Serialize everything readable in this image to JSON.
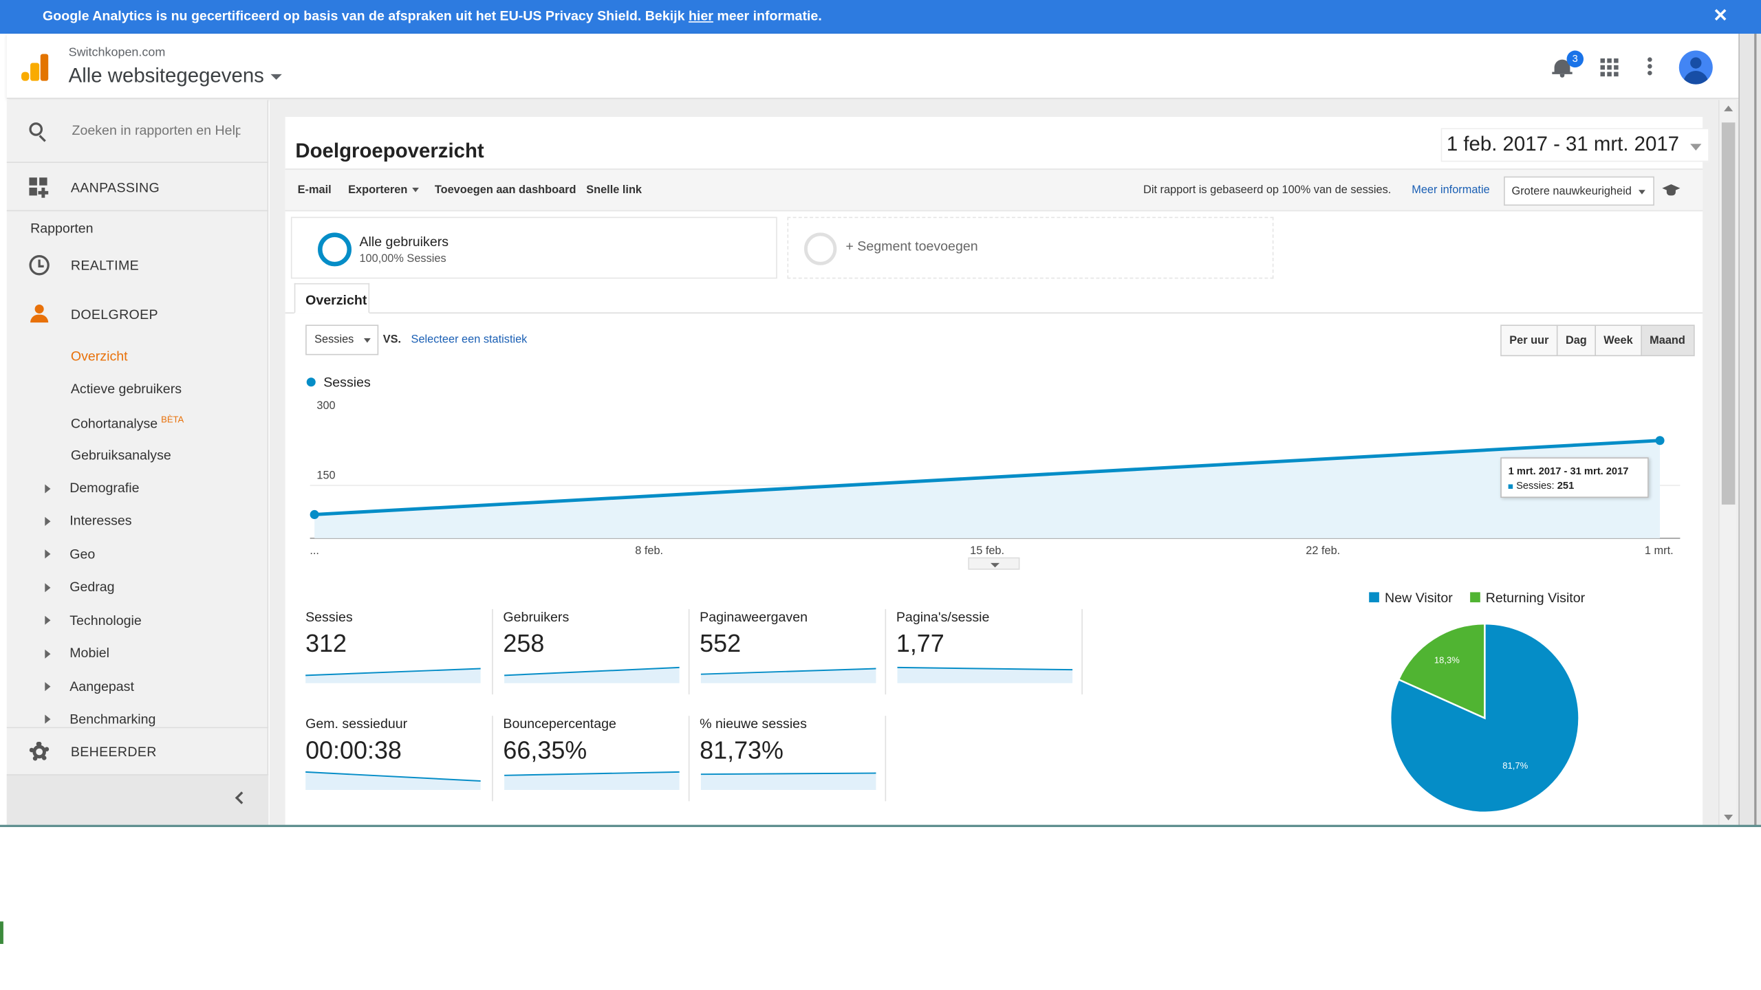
{
  "banner": {
    "text_before": "Google Analytics is nu gecertificeerd op basis van de afspraken uit het EU-US Privacy Shield. Bekijk ",
    "link": "hier",
    "text_after": " meer informatie.",
    "close": "✕"
  },
  "header": {
    "site": "Switchkopen.com",
    "view": "Alle websitegegevens",
    "notification_count": "3",
    "icons": [
      "analytics-logo-icon",
      "bell-icon",
      "apps-grid-icon",
      "more-vert-icon",
      "account-avatar-icon"
    ]
  },
  "sidebar": {
    "search_placeholder": "Zoeken in rapporten en Help",
    "customization": "AANPASSING",
    "reports_heading": "Rapporten",
    "realtime": "REALTIME",
    "audience": "DOELGROEP",
    "audience_items": [
      "Overzicht",
      "Actieve gebruikers",
      "Cohortanalyse",
      "Gebruiksanalyse"
    ],
    "beta": "BÈTA",
    "audience_groups": [
      "Demografie",
      "Interesses",
      "Geo",
      "Gedrag",
      "Technologie",
      "Mobiel",
      "Aangepast",
      "Benchmarking"
    ],
    "admin": "BEHEERDER"
  },
  "report": {
    "title": "Doelgroepoverzicht",
    "date_range": "1 feb. 2017 - 31 mrt. 2017",
    "toolbar": {
      "email": "E-mail",
      "export": "Exporteren",
      "add_dashboard": "Toevoegen aan dashboard",
      "shortcut": "Snelle link",
      "sampling_info": "Dit rapport is gebaseerd op 100% van de sessies.",
      "more_info": "Meer informatie",
      "precision": "Grotere nauwkeurigheid"
    },
    "segment": {
      "name": "Alle gebruikers",
      "sub": "100,00% Sessies",
      "add": "+ Segment toevoegen"
    },
    "tab": "Overzicht",
    "metric_select": "Sessies",
    "vs": "VS.",
    "select_stat": "Selecteer een statistiek",
    "granularity": [
      "Per uur",
      "Dag",
      "Week",
      "Maand"
    ],
    "active_granularity": "Maand",
    "tooltip": {
      "date": "1 mrt. 2017 - 31 mrt. 2017",
      "label": "Sessies:",
      "value": "251"
    },
    "metrics": [
      {
        "label": "Sessies",
        "value": "312"
      },
      {
        "label": "Gebruikers",
        "value": "258"
      },
      {
        "label": "Paginaweergaven",
        "value": "552"
      },
      {
        "label": "Pagina's/sessie",
        "value": "1,77"
      },
      {
        "label": "Gem. sessieduur",
        "value": "00:00:38"
      },
      {
        "label": "Bouncepercentage",
        "value": "66,35%"
      },
      {
        "label": "% nieuwe sessies",
        "value": "81,73%"
      }
    ],
    "colors": {
      "primary": "#058dc7",
      "returning": "#50b432",
      "accent": "#e8710a",
      "banner": "#2d7be0"
    }
  },
  "chart_data": [
    {
      "type": "area",
      "legend": [
        "Sessies"
      ],
      "x": [
        "1 feb.",
        "1 mrt."
      ],
      "x_tick_labels": [
        "...",
        "8 feb.",
        "15 feb.",
        "22 feb.",
        "1 mrt."
      ],
      "y_tick_labels": [
        "300",
        "150"
      ],
      "series": [
        {
          "name": "Sessies",
          "values": [
            61,
            251
          ]
        }
      ],
      "ylim": [
        0,
        300
      ]
    },
    {
      "type": "pie",
      "legend": [
        "New Visitor",
        "Returning Visitor"
      ],
      "labels": [
        "New Visitor",
        "Returning Visitor"
      ],
      "values": [
        81.7,
        18.3
      ],
      "slice_labels": [
        "81,7%",
        "18,3%"
      ],
      "colors": [
        "#058dc7",
        "#50b432"
      ]
    }
  ]
}
